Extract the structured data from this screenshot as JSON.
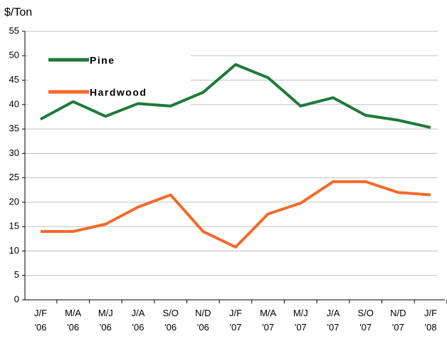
{
  "chart_data": {
    "type": "line",
    "y_label": "$/Ton",
    "categories": [
      [
        "J/F",
        "'06"
      ],
      [
        "M/A",
        "'06"
      ],
      [
        "M/J",
        "'06"
      ],
      [
        "J/A",
        "'06"
      ],
      [
        "S/O",
        "'06"
      ],
      [
        "N/D",
        "'06"
      ],
      [
        "J/F",
        "'07"
      ],
      [
        "M/A",
        "'07"
      ],
      [
        "M/J",
        "'07"
      ],
      [
        "J/A",
        "'07"
      ],
      [
        "S/O",
        "'07"
      ],
      [
        "N/D",
        "'07"
      ],
      [
        "J/F",
        "'08"
      ]
    ],
    "series": [
      {
        "name": "Pine",
        "color": "#1f7a3a",
        "values": [
          37,
          40.6,
          37.6,
          40.2,
          39.7,
          42.5,
          48.2,
          45.5,
          39.7,
          41.4,
          37.8,
          36.8,
          35.3
        ]
      },
      {
        "name": "Hardwood",
        "color": "#f26b2a",
        "values": [
          14,
          14,
          15.5,
          19,
          21.5,
          14,
          10.8,
          17.6,
          19.8,
          24.2,
          24.2,
          22,
          21.5
        ]
      }
    ],
    "ylim": [
      0,
      55
    ],
    "yticks": [
      0,
      5,
      10,
      15,
      20,
      25,
      30,
      35,
      40,
      45,
      50,
      55
    ],
    "grid": true
  }
}
